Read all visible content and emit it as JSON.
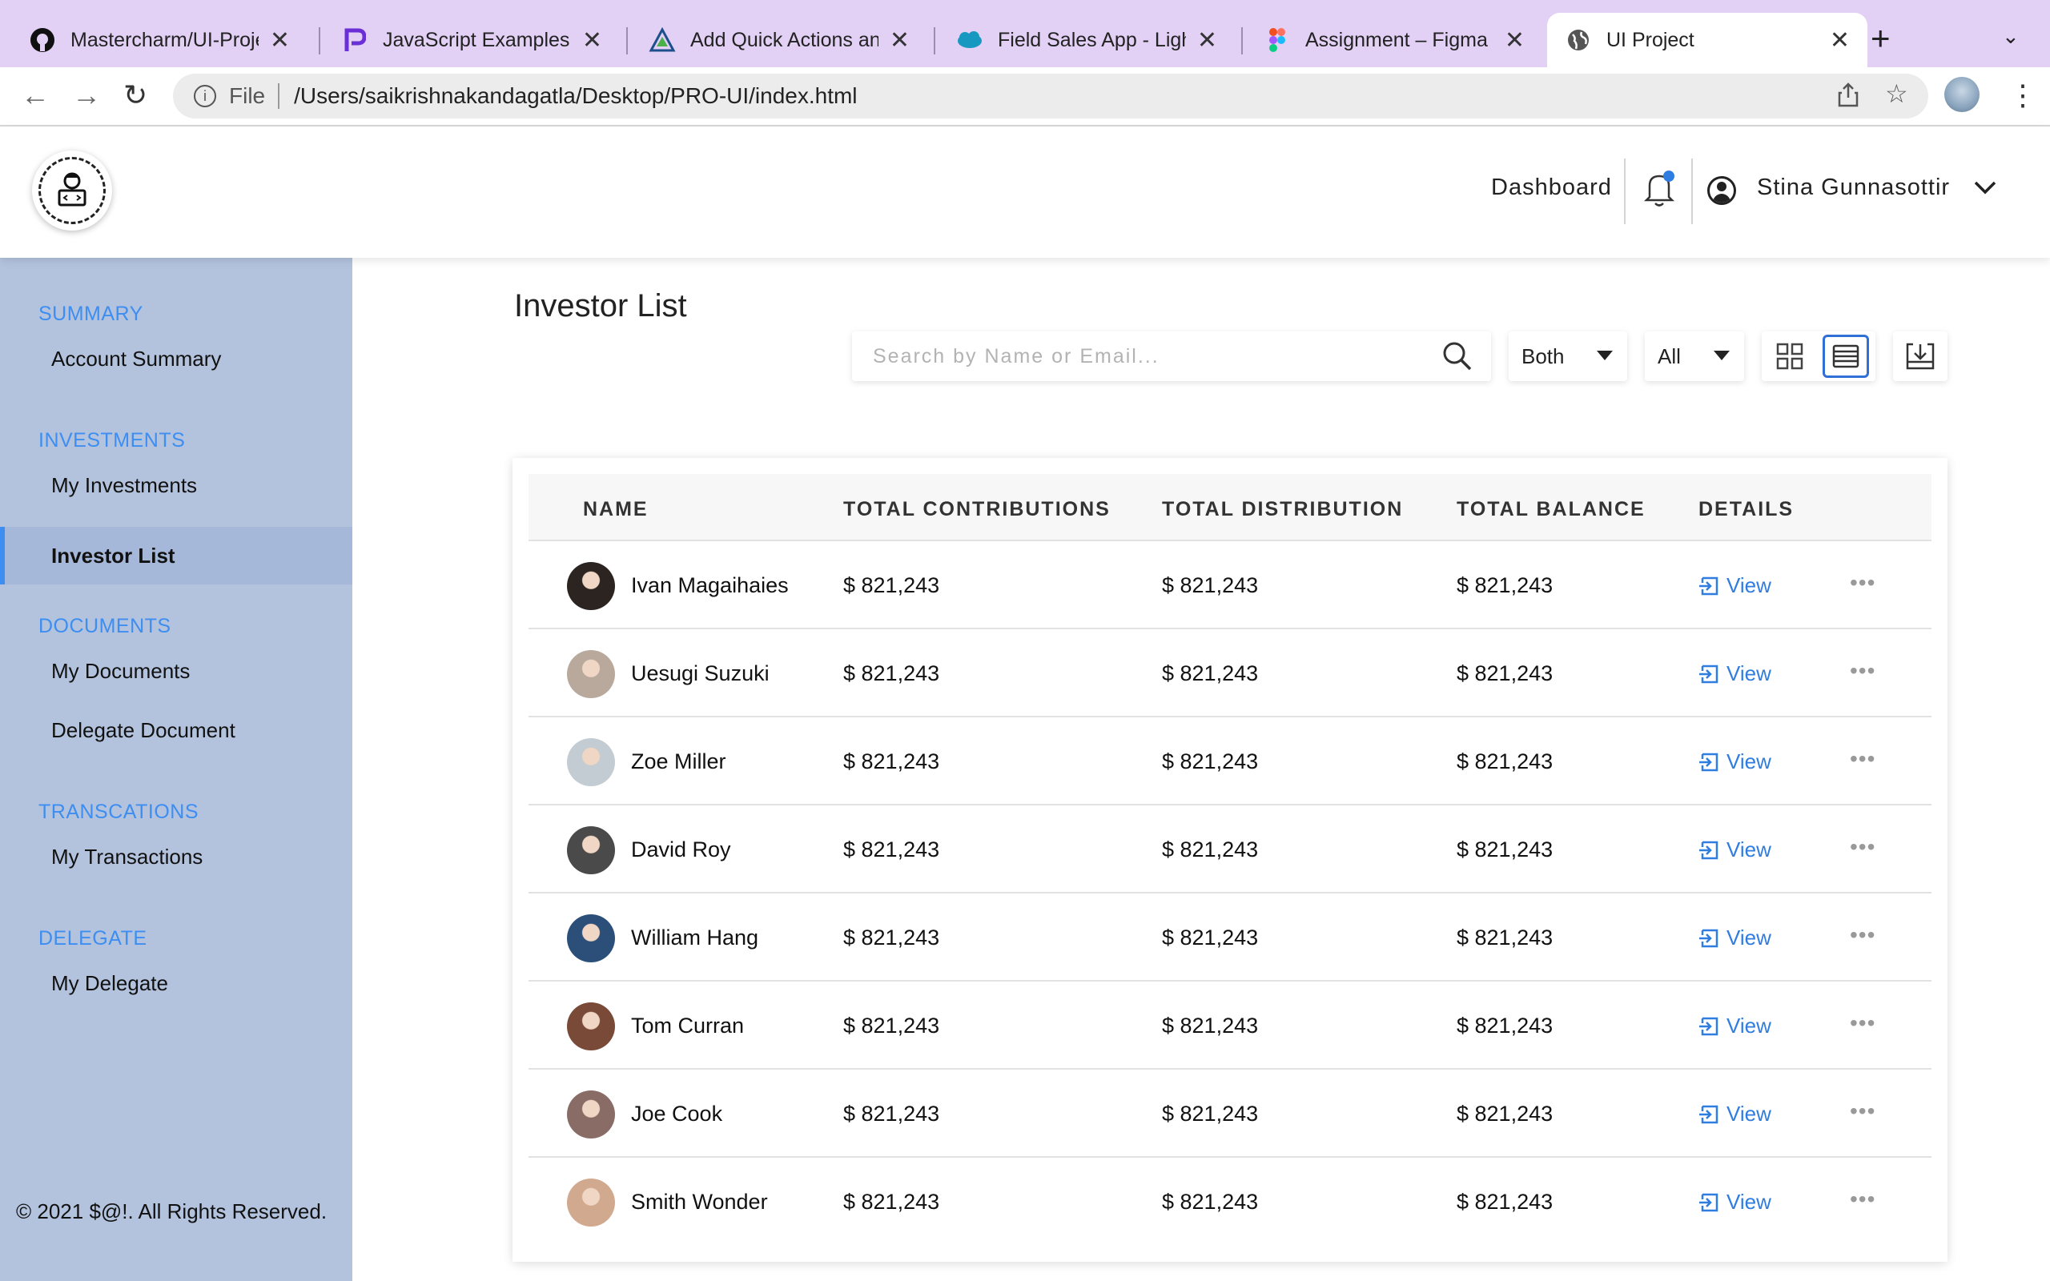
{
  "browser": {
    "tabs": [
      {
        "title": "Mastercharm/UI-Project",
        "icon": "github-icon"
      },
      {
        "title": "JavaScript Examples | Programiz",
        "icon": "programiz-icon"
      },
      {
        "title": "Add Quick Actions and",
        "icon": "trailhead-icon"
      },
      {
        "title": "Field Sales App - Lightning",
        "icon": "salesforce-icon"
      },
      {
        "title": "Assignment – Figma",
        "icon": "figma-icon"
      },
      {
        "title": "UI Project",
        "icon": "globe-icon"
      }
    ],
    "active_tab": 5,
    "address": {
      "scheme": "File",
      "url": "/Users/saikrishnakandagatla/Desktop/PRO-UI/index.html"
    }
  },
  "header": {
    "nav_link": "Dashboard",
    "user_name": "Stina Gunnasottir",
    "notification_dot_color": "#2f7de1"
  },
  "sidebar": {
    "sections": [
      {
        "title": "SUMMARY",
        "items": [
          {
            "label": "Account Summary"
          }
        ]
      },
      {
        "title": "INVESTMENTS",
        "items": [
          {
            "label": "My Investments"
          },
          {
            "label": "Investor List",
            "active": true
          }
        ]
      },
      {
        "title": "DOCUMENTS",
        "items": [
          {
            "label": "My Documents"
          },
          {
            "label": "Delegate Document"
          }
        ]
      },
      {
        "title": "TRANSCATIONS",
        "items": [
          {
            "label": "My Transactions"
          }
        ]
      },
      {
        "title": "DELEGATE",
        "items": [
          {
            "label": "My Delegate"
          }
        ]
      }
    ],
    "footer": "© 2021 $@!. All Rights Reserved.",
    "bg_color": "#b3c3de",
    "accent_color": "#3d8ef0"
  },
  "main": {
    "title": "Investor List",
    "search": {
      "placeholder": "Search by Name or Email...",
      "value": ""
    },
    "filter_type": {
      "selected": "Both"
    },
    "filter_status": {
      "selected": "All"
    },
    "view_mode": "list",
    "table": {
      "columns": [
        "NAME",
        "TOTAL CONTRIBUTIONS",
        "TOTAL DISTRIBUTION",
        "TOTAL BALANCE",
        "DETAILS"
      ],
      "view_label": "View",
      "rows": [
        {
          "name": "Ivan Magaihaies",
          "contributions": "$ 821,243",
          "distribution": "$ 821,243",
          "balance": "$ 821,243",
          "avatar_color": "#2b2420"
        },
        {
          "name": "Uesugi Suzuki",
          "contributions": "$ 821,243",
          "distribution": "$ 821,243",
          "balance": "$ 821,243",
          "avatar_color": "#b9a99c"
        },
        {
          "name": "Zoe Miller",
          "contributions": "$ 821,243",
          "distribution": "$ 821,243",
          "balance": "$ 821,243",
          "avatar_color": "#c3ccd2"
        },
        {
          "name": "David Roy",
          "contributions": "$ 821,243",
          "distribution": "$ 821,243",
          "balance": "$ 821,243",
          "avatar_color": "#4a4a4a"
        },
        {
          "name": "William Hang",
          "contributions": "$ 821,243",
          "distribution": "$ 821,243",
          "balance": "$ 821,243",
          "avatar_color": "#2c4f7a"
        },
        {
          "name": "Tom Curran",
          "contributions": "$ 821,243",
          "distribution": "$ 821,243",
          "balance": "$ 821,243",
          "avatar_color": "#7a4a38"
        },
        {
          "name": "Joe Cook",
          "contributions": "$ 821,243",
          "distribution": "$ 821,243",
          "balance": "$ 821,243",
          "avatar_color": "#8a6c66"
        },
        {
          "name": "Smith Wonder",
          "contributions": "$ 821,243",
          "distribution": "$ 821,243",
          "balance": "$ 821,243",
          "avatar_color": "#d1a98f"
        }
      ]
    },
    "link_color": "#2f7de1"
  }
}
